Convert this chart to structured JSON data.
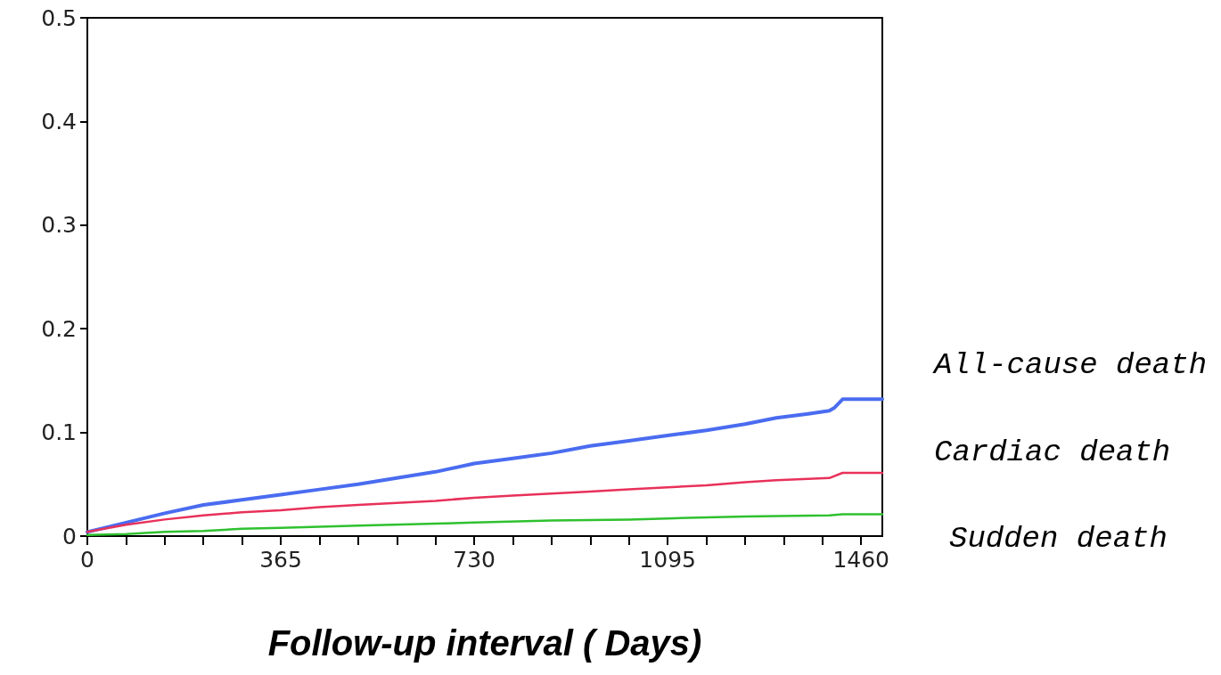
{
  "chart_data": {
    "type": "line",
    "xlabel": "Follow-up interval ( Days)",
    "xlim": [
      0,
      1500
    ],
    "ylim": [
      0,
      0.5
    ],
    "xticks": [
      0,
      {
        "value": 73,
        "label": null
      },
      {
        "value": 146,
        "label": null
      },
      {
        "value": 219,
        "label": null
      },
      {
        "value": 292,
        "label": null
      },
      365,
      {
        "value": 438,
        "label": null
      },
      {
        "value": 511,
        "label": null
      },
      {
        "value": 584,
        "label": null
      },
      {
        "value": 657,
        "label": null
      },
      730,
      {
        "value": 803,
        "label": null
      },
      {
        "value": 876,
        "label": null
      },
      {
        "value": 949,
        "label": null
      },
      {
        "value": 1022,
        "label": null
      },
      1095,
      {
        "value": 1168,
        "label": null
      },
      {
        "value": 1241,
        "label": null
      },
      {
        "value": 1314,
        "label": null
      },
      {
        "value": 1387,
        "label": null
      },
      1460
    ],
    "yticks": [
      0,
      0.1,
      0.2,
      0.3,
      0.4,
      0.5
    ],
    "grid": false,
    "legend": false,
    "marker": "none",
    "line_style": "solid",
    "series": [
      {
        "name": "All-cause death",
        "color": "#4a6cf0",
        "x": [
          0,
          73,
          146,
          219,
          292,
          365,
          438,
          511,
          584,
          657,
          730,
          803,
          876,
          949,
          1022,
          1095,
          1168,
          1241,
          1300,
          1360,
          1400,
          1410,
          1425,
          1500
        ],
        "values": [
          0.004,
          0.013,
          0.022,
          0.03,
          0.035,
          0.04,
          0.045,
          0.05,
          0.056,
          0.062,
          0.07,
          0.075,
          0.08,
          0.087,
          0.092,
          0.097,
          0.102,
          0.108,
          0.114,
          0.118,
          0.121,
          0.124,
          0.132,
          0.132
        ]
      },
      {
        "name": "Cardiac death",
        "color": "#e8315a",
        "x": [
          0,
          73,
          146,
          219,
          292,
          365,
          438,
          511,
          584,
          657,
          730,
          803,
          876,
          949,
          1022,
          1095,
          1168,
          1241,
          1300,
          1400,
          1425,
          1500
        ],
        "values": [
          0.004,
          0.011,
          0.016,
          0.02,
          0.023,
          0.025,
          0.028,
          0.03,
          0.032,
          0.034,
          0.037,
          0.039,
          0.041,
          0.043,
          0.045,
          0.047,
          0.049,
          0.052,
          0.054,
          0.056,
          0.061,
          0.061
        ]
      },
      {
        "name": "Sudden death",
        "color": "#2fc12f",
        "x": [
          0,
          73,
          146,
          219,
          292,
          365,
          511,
          657,
          730,
          876,
          1022,
          1095,
          1241,
          1400,
          1425,
          1500
        ],
        "values": [
          0.001,
          0.002,
          0.004,
          0.005,
          0.007,
          0.008,
          0.01,
          0.012,
          0.013,
          0.015,
          0.016,
          0.017,
          0.019,
          0.02,
          0.021,
          0.021
        ]
      }
    ]
  }
}
